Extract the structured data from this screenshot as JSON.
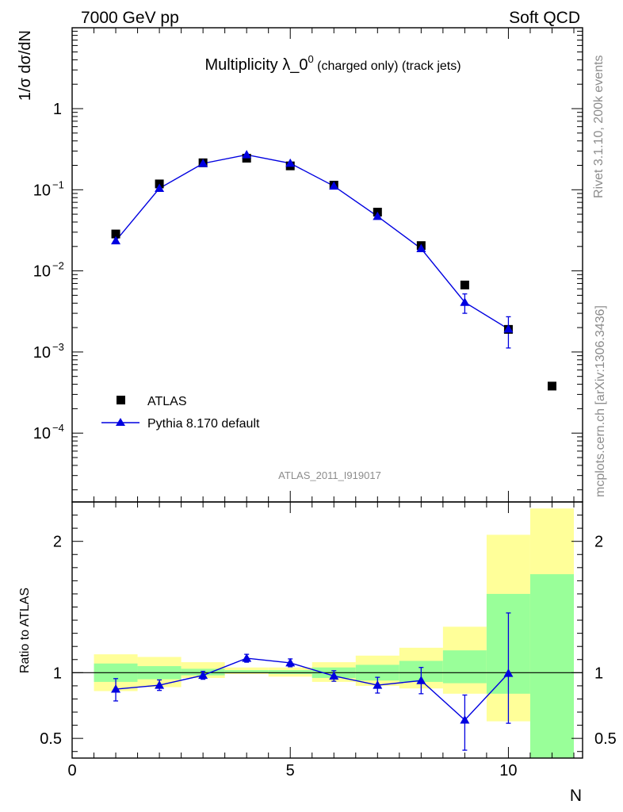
{
  "header": {
    "left": "7000 GeV pp",
    "right": "Soft QCD"
  },
  "side_labels": {
    "rivet": "Rivet 3.1.10,  200k events",
    "mcplots": "mcplots.cern.ch [arXiv:1306.3436]"
  },
  "colors": {
    "mc": "#0000e0",
    "data": "#000000",
    "band_outer": "#ffff99",
    "band_inner": "#99ff99"
  },
  "chart_data": [
    {
      "type": "scatter",
      "title": "Multiplicity λ_0",
      "title_sup": "0",
      "title_suffix": " (charged only) (track jets)",
      "analysis_label": "ATLAS_2011_I919017",
      "ylabel": "1/σ dσ/dN",
      "yscale": "log",
      "ylim": [
        1e-05,
        10
      ],
      "xlim": [
        0,
        11.7
      ],
      "y_ticks": [
        {
          "value": 1,
          "label": "1",
          "exp": ""
        },
        {
          "value": 0.1,
          "label": "10",
          "exp": "−1"
        },
        {
          "value": 0.01,
          "label": "10",
          "exp": "−2"
        },
        {
          "value": 0.001,
          "label": "10",
          "exp": "−3"
        },
        {
          "value": 0.0001,
          "label": "10",
          "exp": "−4"
        }
      ],
      "legend": {
        "position": "bottom-left",
        "data_label": "ATLAS",
        "mc_label": "Pythia 8.170 default"
      },
      "series": [
        {
          "name": "ATLAS",
          "marker": "square",
          "x": [
            1,
            2,
            3,
            4,
            5,
            6,
            7,
            8,
            9,
            10,
            11
          ],
          "y": [
            0.0285,
            0.118,
            0.215,
            0.245,
            0.197,
            0.114,
            0.053,
            0.0205,
            0.0067,
            0.0019,
            0.00038
          ]
        },
        {
          "name": "Pythia 8.170 default",
          "marker": "triangle",
          "x": [
            1,
            2,
            3,
            4,
            5,
            6,
            7,
            8,
            9,
            10
          ],
          "y": [
            0.0235,
            0.104,
            0.211,
            0.27,
            0.212,
            0.111,
            0.047,
            0.0188,
            0.0041,
            0.00192
          ],
          "yerr_low": [
            0.0005,
            0.002,
            0.003,
            0.004,
            0.004,
            0.002,
            0.001,
            0.0012,
            0.0011,
            0.0008
          ],
          "yerr_high": [
            0.0005,
            0.002,
            0.003,
            0.004,
            0.004,
            0.002,
            0.001,
            0.0012,
            0.0011,
            0.0008
          ]
        }
      ]
    },
    {
      "type": "scatter",
      "ylabel": "Ratio to ATLAS",
      "xlabel": "N",
      "ylim": [
        0.35,
        2.3
      ],
      "xlim": [
        0,
        11.7
      ],
      "x_ticks": [
        0,
        5,
        10
      ],
      "y_ticks": [
        0.5,
        1,
        2
      ],
      "bands": {
        "x_low": [
          0.5,
          1.5,
          2.5,
          3.5,
          4.5,
          5.5,
          6.5,
          7.5,
          8.5,
          9.5,
          10.5
        ],
        "x_high": [
          1.5,
          2.5,
          3.5,
          4.5,
          5.5,
          6.5,
          7.5,
          8.5,
          9.5,
          10.5,
          11.5
        ],
        "outer_low": [
          0.86,
          0.89,
          0.96,
          0.99,
          0.97,
          0.93,
          0.9,
          0.88,
          0.84,
          0.63,
          0.3
        ],
        "outer_high": [
          1.14,
          1.12,
          1.08,
          1.04,
          1.04,
          1.08,
          1.13,
          1.19,
          1.35,
          2.05,
          2.25
        ],
        "inner_low": [
          0.93,
          0.95,
          0.98,
          1.0,
          0.99,
          0.96,
          0.94,
          0.93,
          0.92,
          0.84,
          0.3
        ],
        "inner_high": [
          1.07,
          1.05,
          1.03,
          1.02,
          1.02,
          1.04,
          1.06,
          1.09,
          1.17,
          1.6,
          1.75
        ]
      },
      "series": [
        {
          "name": "Pythia 8.170 default / ATLAS",
          "marker": "triangle",
          "x": [
            1,
            2,
            3,
            4,
            5,
            6,
            7,
            8,
            9,
            10
          ],
          "y": [
            0.875,
            0.905,
            0.98,
            1.11,
            1.075,
            0.975,
            0.905,
            0.94,
            0.64,
            0.995
          ],
          "yerr_low": [
            0.09,
            0.04,
            0.03,
            0.03,
            0.03,
            0.04,
            0.06,
            0.1,
            0.23,
            0.38
          ],
          "yerr_high": [
            0.08,
            0.04,
            0.03,
            0.03,
            0.03,
            0.04,
            0.06,
            0.1,
            0.19,
            0.46
          ]
        }
      ]
    }
  ]
}
